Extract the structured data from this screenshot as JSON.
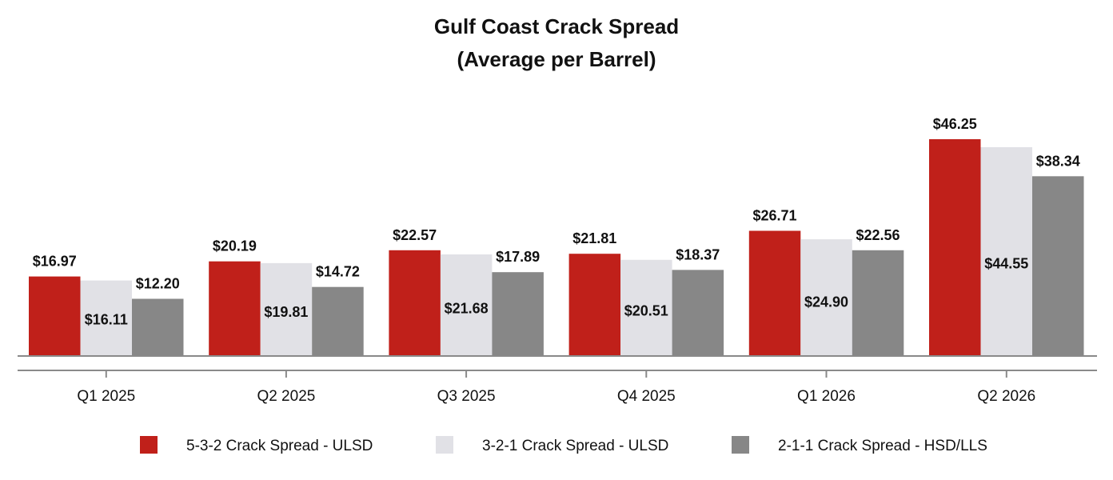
{
  "chart_data": {
    "type": "bar",
    "title": "Gulf Coast Crack Spread",
    "subtitle": "(Average per Barrel)",
    "categories": [
      "Q1 2025",
      "Q2 2025",
      "Q3 2025",
      "Q4 2025",
      "Q1 2026",
      "Q2 2026"
    ],
    "series": [
      {
        "name": "5-3-2 Crack Spread - ULSD",
        "color": "#c0201a",
        "values": [
          16.97,
          20.19,
          22.57,
          21.81,
          26.71,
          46.25
        ],
        "labels": [
          "$16.97",
          "$20.19",
          "$22.57",
          "$21.81",
          "$26.71",
          "$46.25"
        ],
        "label_position": "above"
      },
      {
        "name": "3-2-1 Crack Spread - ULSD",
        "color": "#e1e1e6",
        "values": [
          16.11,
          19.81,
          21.68,
          20.51,
          24.9,
          44.55
        ],
        "labels": [
          "$16.11",
          "$19.81",
          "$21.68",
          "$20.51",
          "$24.90",
          "$44.55"
        ],
        "label_position": "inside"
      },
      {
        "name": "2-1-1 Crack Spread - HSD/LLS",
        "color": "#878787",
        "values": [
          12.2,
          14.72,
          17.89,
          18.37,
          22.56,
          38.34
        ],
        "labels": [
          "$12.20",
          "$14.72",
          "$17.89",
          "$18.37",
          "$22.56",
          "$38.34"
        ],
        "label_position": "above"
      }
    ],
    "ylim": [
      0,
      46.25
    ],
    "grid": false,
    "legend_position": "bottom"
  }
}
